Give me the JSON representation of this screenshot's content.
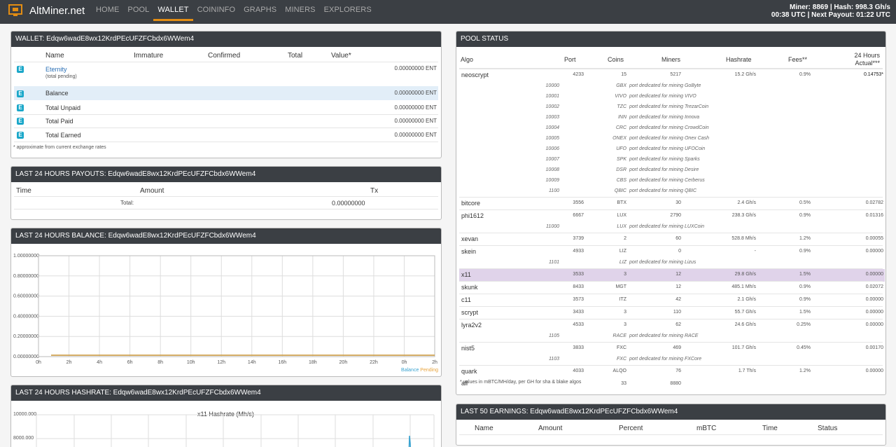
{
  "header": {
    "brand": "AltMiner.net",
    "nav": [
      "HOME",
      "POOL",
      "WALLET",
      "COININFO",
      "GRAPHS",
      "MINERS",
      "EXPLORERS"
    ],
    "stats_line1": "Miner: 8869 | Hash: 998.3 Gh/s",
    "stats_line2": "00:38 UTC | Next Payout: 01:22 UTC"
  },
  "wallet": {
    "title": "WALLET: Edqw6wadE8wx12KrdPEcUFZFCbdx6WWem4",
    "columns": [
      "Name",
      "Immature",
      "Confirmed",
      "Total",
      "Value*"
    ],
    "coin_name": "Eternity",
    "coin_sub": "(total pending)",
    "coin_value": "0.00000000 ENT",
    "rows": [
      {
        "label": "Balance",
        "value": "0.00000000 ENT"
      },
      {
        "label": "Total Unpaid",
        "value": "0.00000000 ENT"
      },
      {
        "label": "Total Paid",
        "value": "0.00000000 ENT"
      },
      {
        "label": "Total Earned",
        "value": "0.00000000 ENT"
      }
    ],
    "note": "* approximate from current exchange rates"
  },
  "payouts": {
    "title": "LAST 24 HOURS PAYOUTS: Edqw6wadE8wx12KrdPEcUFZFCbdx6WWem4",
    "columns": [
      "Time",
      "Amount",
      "Tx"
    ],
    "total_label": "Total:",
    "total_value": "0.00000000"
  },
  "balance_chart": {
    "title": "LAST 24 HOURS BALANCE: Edqw6wadE8wx12KrdPEcUFZFCbdx6WWem4",
    "legend": [
      "Balance",
      "Pending"
    ]
  },
  "hashrate_chart": {
    "title": "LAST 24 HOURS HASHRATE: Edqw6wadE8wx12KrdPEcUFZFCbdx6WWem4",
    "chart_title": "x11 Hashrate (Mh/s)",
    "yticks": [
      "10000.000",
      "8000.000"
    ]
  },
  "chart_data": [
    {
      "type": "line",
      "x": [
        "0h",
        "2h",
        "4h",
        "6h",
        "8h",
        "10h",
        "12h",
        "14h",
        "16h",
        "18h",
        "20h",
        "22h",
        "0h",
        "2h"
      ],
      "yticks": [
        "1.00000000",
        "0.80000000",
        "0.60000000",
        "0.40000000",
        "0.20000000",
        "0.00000000"
      ],
      "ylim": [
        0,
        1
      ],
      "series": [
        {
          "name": "Balance",
          "values": [
            0,
            0,
            0,
            0,
            0,
            0,
            0,
            0,
            0,
            0,
            0,
            0,
            0,
            0
          ]
        },
        {
          "name": "Pending",
          "values": [
            0,
            0,
            0,
            0,
            0,
            0,
            0,
            0,
            0,
            0,
            0,
            0,
            0,
            0
          ]
        }
      ],
      "colors": {
        "Balance": "#3aa3d0",
        "Pending": "#e8a33c"
      }
    }
  ],
  "pool": {
    "title": "POOL STATUS",
    "columns": [
      "Algo",
      "Port",
      "Coins",
      "Miners",
      "Hashrate",
      "Fees**",
      "24 Hours",
      "Actual***"
    ],
    "rows": [
      {
        "algo": "neoscrypt",
        "port": "4233",
        "coins": "15",
        "miners": "5217",
        "hash": "15.2 Gh/s",
        "fees": "0.9%",
        "actual": "0.14753*"
      },
      {
        "sub": true,
        "port": "10000",
        "coins": "GBX",
        "desc": "port dedicated for mining GoByte"
      },
      {
        "sub": true,
        "port": "10001",
        "coins": "VIVO",
        "desc": "port dedicated for mining VIVO"
      },
      {
        "sub": true,
        "port": "10002",
        "coins": "TZC",
        "desc": "port dedicated for mining TrezarCoin"
      },
      {
        "sub": true,
        "port": "10003",
        "coins": "INN",
        "desc": "port dedicated for mining Innova"
      },
      {
        "sub": true,
        "port": "10004",
        "coins": "CRC",
        "desc": "port dedicated for mining CrowdCoin"
      },
      {
        "sub": true,
        "port": "10005",
        "coins": "ONEX",
        "desc": "port dedicated for mining Onex Cash"
      },
      {
        "sub": true,
        "port": "10006",
        "coins": "UFO",
        "desc": "port dedicated for mining UFOCoin"
      },
      {
        "sub": true,
        "port": "10007",
        "coins": "SPK",
        "desc": "port dedicated for mining Sparks"
      },
      {
        "sub": true,
        "port": "10008",
        "coins": "DSR",
        "desc": "port dedicated for mining Desire"
      },
      {
        "sub": true,
        "port": "10009",
        "coins": "CBS",
        "desc": "port dedicated for mining Cerberus"
      },
      {
        "sub": true,
        "port": "1100",
        "coins": "QBIC",
        "desc": "port dedicated for mining QBIC"
      },
      {
        "algo": "bitcore",
        "port": "3556",
        "coins": "BTX",
        "miners": "30",
        "hash": "2.4 Gh/s",
        "fees": "0.5%",
        "actual": "0.02782"
      },
      {
        "algo": "phi1612",
        "port": "6667",
        "coins": "LUX",
        "miners": "2790",
        "hash": "238.3 Gh/s",
        "fees": "0.9%",
        "actual": "0.01316"
      },
      {
        "sub": true,
        "port": "11000",
        "coins": "LUX",
        "desc": "port dedicated for mining LUXCoin"
      },
      {
        "algo": "xevan",
        "port": "3739",
        "coins": "2",
        "miners": "60",
        "hash": "528.8 Mh/s",
        "fees": "1.2%",
        "actual": "0.00055"
      },
      {
        "algo": "skein",
        "port": "4933",
        "coins": "LIZ",
        "miners": "0",
        "hash": "-",
        "fees": "0.9%",
        "actual": "0.00000"
      },
      {
        "sub": true,
        "port": "1101",
        "coins": "LIZ",
        "desc": "port dedicated for mining Lizus"
      },
      {
        "algo": "x11",
        "port": "3533",
        "coins": "3",
        "miners": "12",
        "hash": "29.8 Gh/s",
        "fees": "1.5%",
        "actual": "0.00000",
        "hl": true
      },
      {
        "algo": "skunk",
        "port": "8433",
        "coins": "MGT",
        "miners": "12",
        "hash": "485.1 Mh/s",
        "fees": "0.9%",
        "actual": "0.02072"
      },
      {
        "algo": "c11",
        "port": "3573",
        "coins": "ITZ",
        "miners": "42",
        "hash": "2.1 Gh/s",
        "fees": "0.9%",
        "actual": "0.00000"
      },
      {
        "algo": "scrypt",
        "port": "3433",
        "coins": "3",
        "miners": "110",
        "hash": "55.7 Gh/s",
        "fees": "1.5%",
        "actual": "0.00000"
      },
      {
        "algo": "lyra2v2",
        "port": "4533",
        "coins": "3",
        "miners": "62",
        "hash": "24.6 Gh/s",
        "fees": "0.25%",
        "actual": "0.00000"
      },
      {
        "sub": true,
        "port": "1105",
        "coins": "RACE",
        "desc": "port dedicated for mining RACE"
      },
      {
        "algo": "nist5",
        "port": "3833",
        "coins": "FXC",
        "miners": "469",
        "hash": "101.7 Gh/s",
        "fees": "0.45%",
        "actual": "0.00170"
      },
      {
        "sub": true,
        "port": "1103",
        "coins": "FXC",
        "desc": "port dedicated for mining FXCore"
      },
      {
        "algo": "quark",
        "port": "4033",
        "coins": "ALQO",
        "miners": "76",
        "hash": "1.7 Th/s",
        "fees": "1.2%",
        "actual": "0.00000"
      },
      {
        "algo": "all",
        "port": "",
        "coins": "33",
        "miners": "8880",
        "hash": "",
        "fees": "",
        "actual": ""
      }
    ],
    "note": "* values in mBTC/MH/day, per GH for sha & blake algos"
  },
  "earnings": {
    "title": "LAST 50 EARNINGS: Edqw6wadE8wx12KrdPEcUFZFCbdx6WWem4",
    "columns": [
      "Name",
      "Amount",
      "Percent",
      "mBTC",
      "Time",
      "Status"
    ]
  }
}
